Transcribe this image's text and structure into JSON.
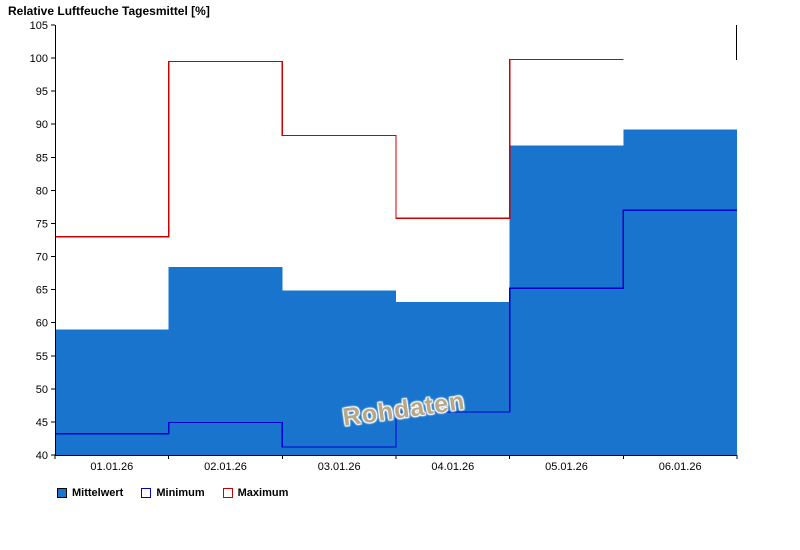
{
  "chart_data": {
    "type": "bar",
    "title": "Relative Luftfeuche Tagesmittel [%]",
    "categories": [
      "01.01.26",
      "02.01.26",
      "03.01.26",
      "04.01.26",
      "05.01.26",
      "06.01.26"
    ],
    "series": [
      {
        "name": "Mittelwert",
        "kind": "bar",
        "color": "#1874cd",
        "values": [
          59.0,
          68.4,
          64.9,
          63.1,
          86.8,
          89.2
        ]
      },
      {
        "name": "Minimum",
        "kind": "step-line",
        "color": "#0000cd",
        "values": [
          43.2,
          44.9,
          41.2,
          46.5,
          65.2,
          77.0
        ]
      },
      {
        "name": "Maximum",
        "kind": "step-line",
        "color": "#cd0000",
        "values": [
          73.0,
          99.5,
          88.3,
          75.8,
          99.8,
          null
        ]
      }
    ],
    "ylim": [
      40,
      105
    ],
    "ytick_step": 5,
    "xlabel": "",
    "ylabel": "",
    "grid": false,
    "legend_position": "bottom-left"
  },
  "watermark": {
    "text": "Rohdaten",
    "color": "#b8a88a"
  },
  "frame": {
    "axis_color": "#000000"
  }
}
